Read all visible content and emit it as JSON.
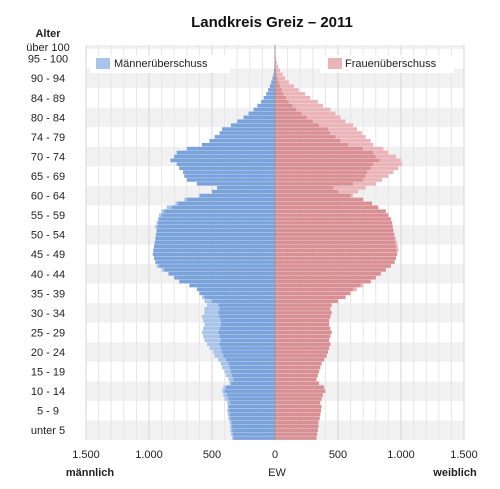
{
  "chart_data": {
    "type": "bar",
    "title": "Landkreis Greiz – 2011",
    "y_axis_title": "Alter",
    "x_axis_title": "EW",
    "left_side_label": "männlich",
    "right_side_label": "weiblich",
    "x_tick_labels": [
      "1.500",
      "1.000",
      "500",
      "0",
      "500",
      "1.000",
      "1.500"
    ],
    "xlim": [
      -1500,
      1500
    ],
    "age_group_labels": [
      "über 100",
      "95 - 100",
      "90 - 94",
      "84 - 89",
      "80 - 84",
      "74 - 79",
      "70 - 74",
      "65 - 69",
      "60 - 64",
      "55 - 59",
      "50 - 54",
      "45 - 49",
      "40 - 44",
      "35 - 39",
      "30 - 34",
      "25 - 29",
      "20 - 24",
      "15 - 19",
      "10 - 14",
      "5 - 9",
      "unter 5"
    ],
    "legend": [
      {
        "name": "Männerüberschuss",
        "color": "#a8c4ea",
        "position": "top-left"
      },
      {
        "name": "Frauenüberschuss",
        "color": "#eab4b8",
        "position": "top-right"
      }
    ],
    "colors": {
      "male": "#7aa3dc",
      "female": "#d99094",
      "male_surplus": "#a8c4ea",
      "female_surplus": "#eab4b8"
    },
    "ages": [
      0,
      1,
      2,
      3,
      4,
      5,
      6,
      7,
      8,
      9,
      10,
      11,
      12,
      13,
      14,
      15,
      16,
      17,
      18,
      19,
      20,
      21,
      22,
      23,
      24,
      25,
      26,
      27,
      28,
      29,
      30,
      31,
      32,
      33,
      34,
      35,
      36,
      37,
      38,
      39,
      40,
      41,
      42,
      43,
      44,
      45,
      46,
      47,
      48,
      49,
      50,
      51,
      52,
      53,
      54,
      55,
      56,
      57,
      58,
      59,
      60,
      61,
      62,
      63,
      64,
      65,
      66,
      67,
      68,
      69,
      70,
      71,
      72,
      73,
      74,
      75,
      76,
      77,
      78,
      79,
      80,
      81,
      82,
      83,
      84,
      85,
      86,
      87,
      88,
      89,
      90,
      91,
      92,
      93,
      94,
      95,
      96,
      97,
      98,
      99,
      100
    ],
    "series": [
      {
        "name": "männlich",
        "values": [
          340,
          350,
          355,
          355,
          360,
          370,
          375,
          380,
          375,
          380,
          400,
          410,
          420,
          410,
          360,
          370,
          390,
          400,
          420,
          430,
          450,
          480,
          490,
          520,
          540,
          560,
          570,
          580,
          570,
          560,
          570,
          580,
          560,
          560,
          540,
          560,
          580,
          600,
          620,
          680,
          760,
          800,
          850,
          900,
          940,
          950,
          960,
          970,
          965,
          960,
          955,
          950,
          945,
          940,
          950,
          940,
          930,
          920,
          900,
          860,
          790,
          720,
          600,
          500,
          460,
          620,
          700,
          720,
          730,
          760,
          780,
          830,
          800,
          780,
          700,
          580,
          520,
          480,
          440,
          420,
          350,
          300,
          250,
          210,
          170,
          140,
          110,
          90,
          70,
          55,
          40,
          30,
          20,
          12,
          8,
          5,
          3,
          2,
          1,
          1,
          1
        ]
      },
      {
        "name": "weiblich",
        "values": [
          330,
          335,
          340,
          345,
          345,
          355,
          360,
          365,
          370,
          360,
          370,
          380,
          400,
          390,
          350,
          330,
          340,
          350,
          360,
          370,
          390,
          410,
          420,
          430,
          440,
          430,
          440,
          450,
          440,
          430,
          430,
          440,
          450,
          440,
          450,
          500,
          560,
          600,
          650,
          700,
          760,
          800,
          840,
          880,
          920,
          950,
          960,
          970,
          980,
          975,
          970,
          960,
          950,
          940,
          935,
          930,
          920,
          900,
          880,
          820,
          770,
          700,
          620,
          660,
          720,
          800,
          850,
          900,
          940,
          980,
          1010,
          1000,
          960,
          900,
          860,
          780,
          760,
          720,
          690,
          650,
          620,
          560,
          520,
          480,
          440,
          380,
          340,
          280,
          240,
          190,
          150,
          110,
          80,
          60,
          40,
          25,
          15,
          8,
          5,
          3,
          2
        ]
      }
    ],
    "grid": true
  }
}
